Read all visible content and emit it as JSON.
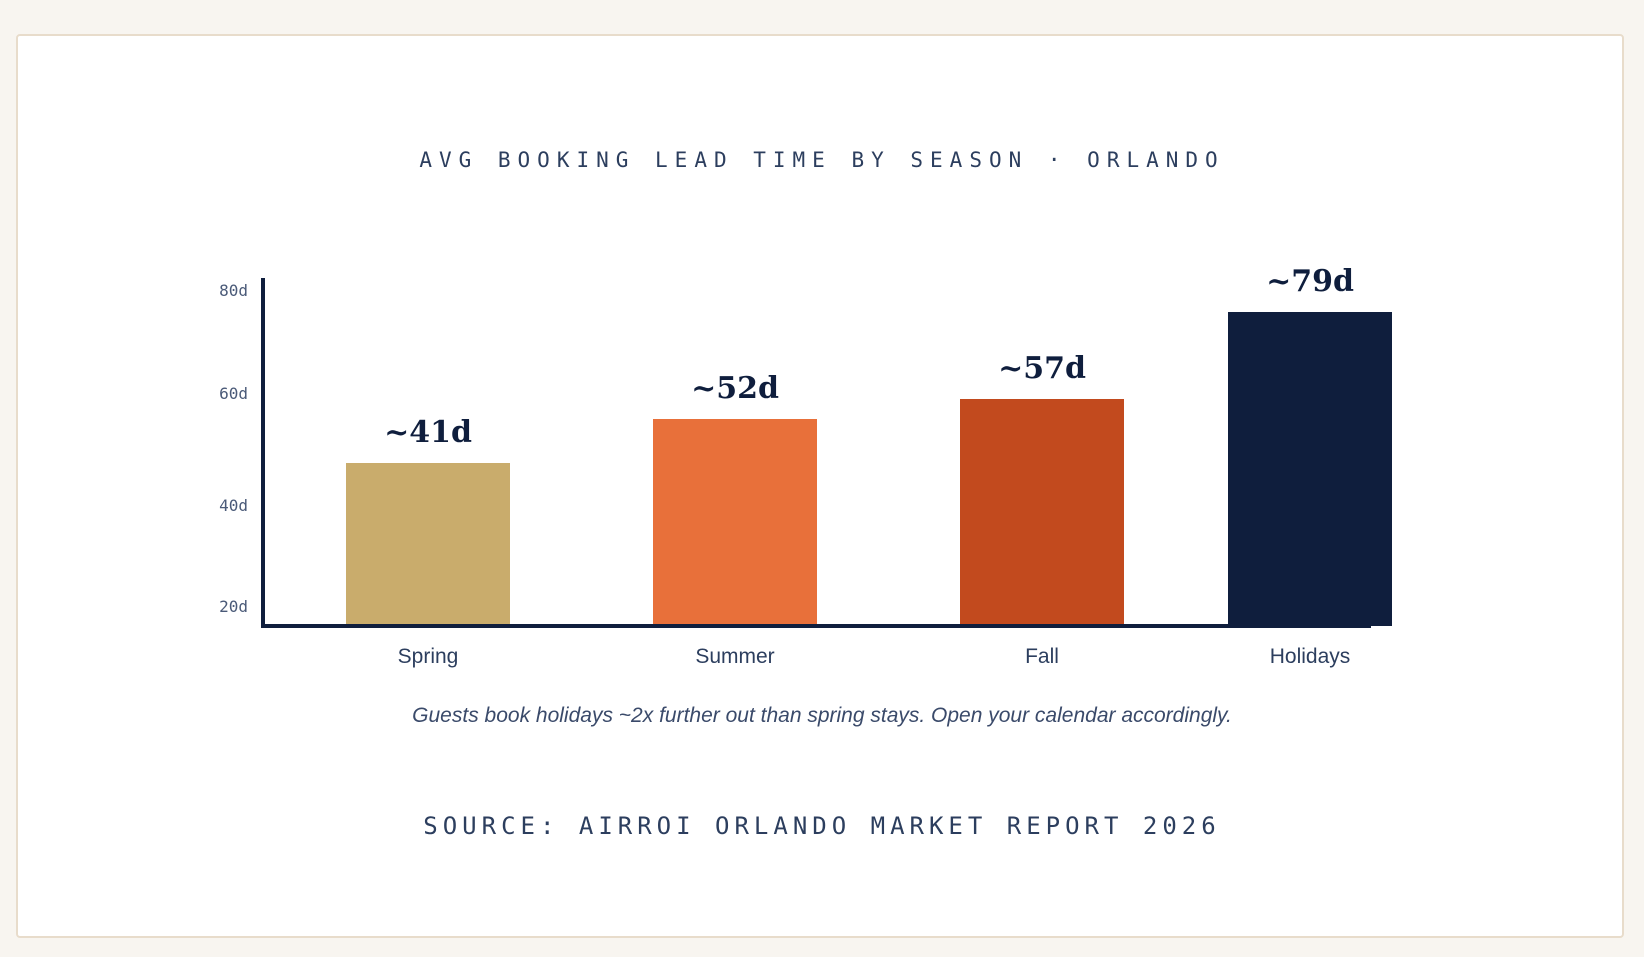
{
  "chart_data": {
    "type": "bar",
    "title": "AVG BOOKING LEAD TIME BY SEASON · ORLANDO",
    "categories": [
      "Spring",
      "Summer",
      "Fall",
      "Holidays"
    ],
    "values": [
      41,
      52,
      57,
      79
    ],
    "data_labels": [
      "~41d",
      "~52d",
      "~57d",
      "~79d"
    ],
    "colors": [
      "#C9AC6C",
      "#E8703A",
      "#C24A1E",
      "#0F1E3D"
    ],
    "y_ticks": [
      "80d",
      "60d",
      "40d",
      "20d"
    ],
    "xlabel": "",
    "ylabel": "",
    "grid": false,
    "legend": "none"
  },
  "caption": "Guests book holidays ~2x further out than spring stays. Open your calendar accordingly.",
  "source": "SOURCE: AIRROI ORLANDO MARKET REPORT 2026"
}
